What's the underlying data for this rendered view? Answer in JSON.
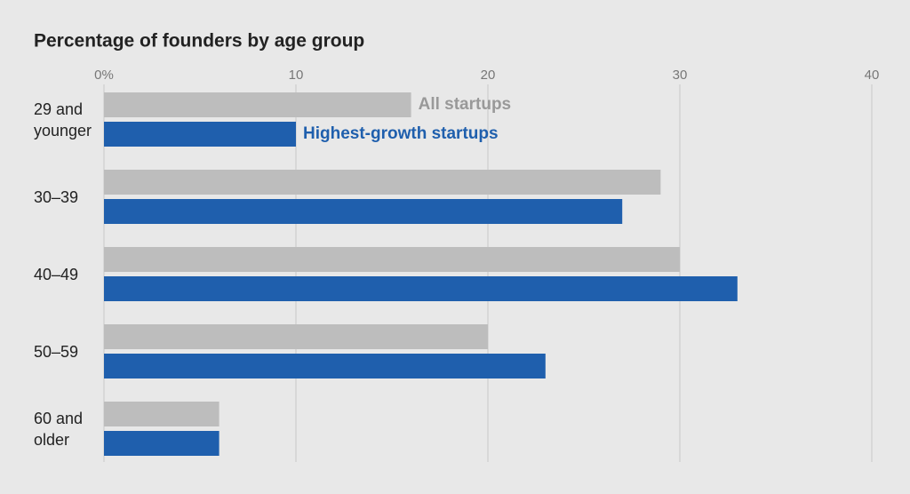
{
  "chart_data": {
    "type": "hbar",
    "title": "Percentage of founders by age group",
    "categories": [
      "29 and\nyounger",
      "30–39",
      "40–49",
      "50–59",
      "60 and\nolder"
    ],
    "series": [
      {
        "name": "All startups",
        "color": "#bdbdbd",
        "values": [
          16,
          29,
          30,
          20,
          6
        ]
      },
      {
        "name": "Highest-growth startups",
        "color": "#1f5fad",
        "values": [
          10,
          27,
          33,
          23,
          6
        ]
      }
    ],
    "xlim": [
      0,
      40
    ],
    "xticks": [
      {
        "value": 0,
        "label": "0%"
      },
      10,
      20,
      30,
      40
    ],
    "grid": true
  }
}
